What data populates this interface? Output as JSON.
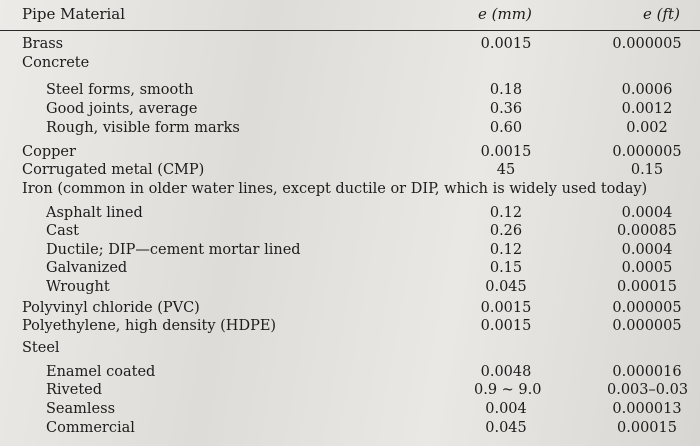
{
  "header": {
    "material": "Pipe Material",
    "mm": "e (mm)",
    "ft": "e (ft)"
  },
  "rows": [
    {
      "name": "Brass",
      "mm": "0.0015",
      "ft": "0.000005",
      "indent": false
    },
    {
      "name": "Concrete",
      "mm": "",
      "ft": "",
      "indent": false
    },
    {
      "name": "Steel forms, smooth",
      "mm": "0.18",
      "ft": "0.0006",
      "indent": true
    },
    {
      "name": "Good joints, average",
      "mm": "0.36",
      "ft": "0.0012",
      "indent": true
    },
    {
      "name": "Rough, visible form marks",
      "mm": "0.60",
      "ft": "0.002",
      "indent": true
    },
    {
      "name": "Copper",
      "mm": "0.0015",
      "ft": "0.000005",
      "indent": false
    },
    {
      "name": "Corrugated metal (CMP)",
      "mm": "45",
      "ft": "0.15",
      "indent": false
    },
    {
      "name": "Iron (common in older water lines, except ductile or DIP, which is widely used today)",
      "mm": "",
      "ft": "",
      "indent": false
    },
    {
      "name": "Asphalt lined",
      "mm": "0.12",
      "ft": "0.0004",
      "indent": true
    },
    {
      "name": "Cast",
      "mm": "0.26",
      "ft": "0.00085",
      "indent": true
    },
    {
      "name": "Ductile; DIP—cement mortar lined",
      "mm": "0.12",
      "ft": "0.0004",
      "indent": true
    },
    {
      "name": "Galvanized",
      "mm": "0.15",
      "ft": "0.0005",
      "indent": true
    },
    {
      "name": "Wrought",
      "mm": "0.045",
      "ft": "0.00015",
      "indent": true
    },
    {
      "name": "Polyvinyl chloride (PVC)",
      "mm": "0.0015",
      "ft": "0.000005",
      "indent": false
    },
    {
      "name": "Polyethylene, high density (HDPE)",
      "mm": "0.0015",
      "ft": "0.000005",
      "indent": false
    },
    {
      "name": "Steel",
      "mm": "",
      "ft": "",
      "indent": false
    },
    {
      "name": "Enamel coated",
      "mm": "0.0048",
      "ft": "0.000016",
      "indent": true
    },
    {
      "name": "Riveted",
      "mm": "0.9 ~ 9.0",
      "ft": "0.003–0.03",
      "indent": true
    },
    {
      "name": "Seamless",
      "mm": "0.004",
      "ft": "0.000013",
      "indent": true
    },
    {
      "name": "Commercial",
      "mm": "0.045",
      "ft": "0.00015",
      "indent": true
    }
  ]
}
